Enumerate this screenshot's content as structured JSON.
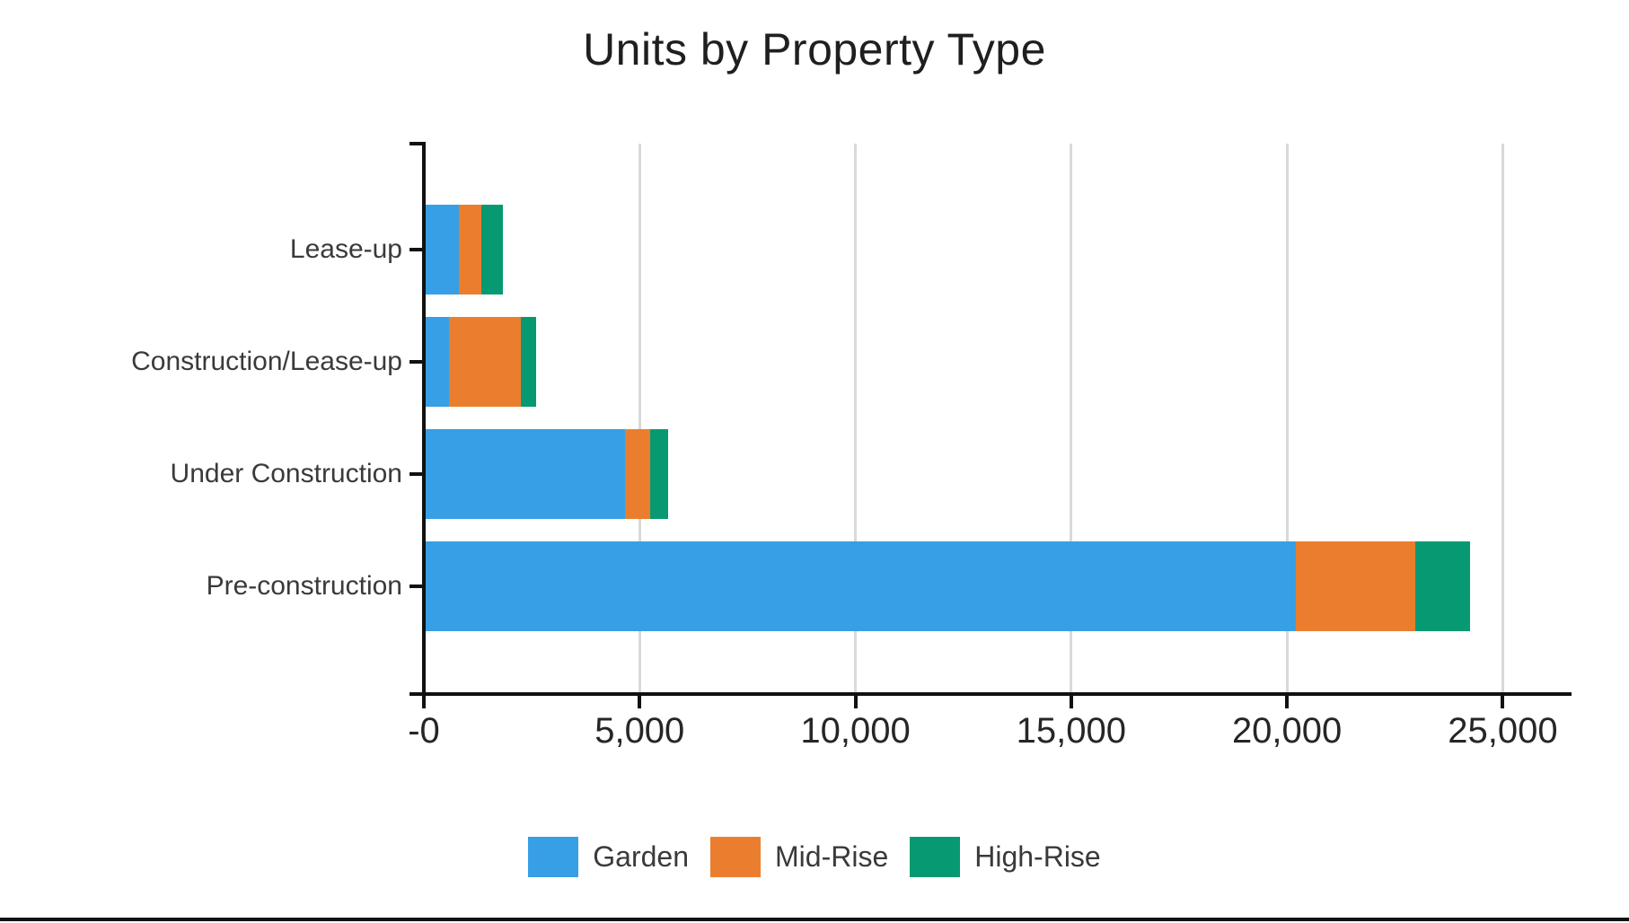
{
  "title": "Units by Property Type",
  "chart_data": {
    "type": "bar",
    "orientation": "horizontal",
    "stacked": true,
    "title": "Units by Property Type",
    "xlabel": "",
    "ylabel": "",
    "xlim": [
      0,
      25000
    ],
    "grid": "vertical-gridlines-on",
    "legend_position": "bottom",
    "categories": [
      "Lease-up",
      "Construction/Lease-up",
      "Under Construction",
      "Pre-construction"
    ],
    "series": [
      {
        "name": "Garden",
        "color": "#379FE5",
        "values": [
          805,
          580,
          4660,
          20210
        ]
      },
      {
        "name": "Mid-Rise",
        "color": "#EB7E2E",
        "values": [
          525,
          1665,
          590,
          2765
        ]
      },
      {
        "name": "High-Rise",
        "color": "#079A72",
        "values": [
          500,
          355,
          420,
          1260
        ]
      }
    ],
    "totals": [
      1830,
      2600,
      5670,
      24235
    ],
    "x_ticks": [
      {
        "value": 0,
        "label": "-0"
      },
      {
        "value": 5000,
        "label": "5,000"
      },
      {
        "value": 10000,
        "label": "10,000"
      },
      {
        "value": 15000,
        "label": "15,000"
      },
      {
        "value": 20000,
        "label": "20,000"
      },
      {
        "value": 25000,
        "label": "25,000"
      }
    ]
  },
  "colors": {
    "garden": "#379FE5",
    "mid_rise": "#EB7E2E",
    "high_rise": "#079A72",
    "gridline": "#D9D9D9",
    "axis": "#111111",
    "tick_label_text": "#262626",
    "category_label_text": "#3a3a3a",
    "title_text": "#1f1f1f"
  }
}
